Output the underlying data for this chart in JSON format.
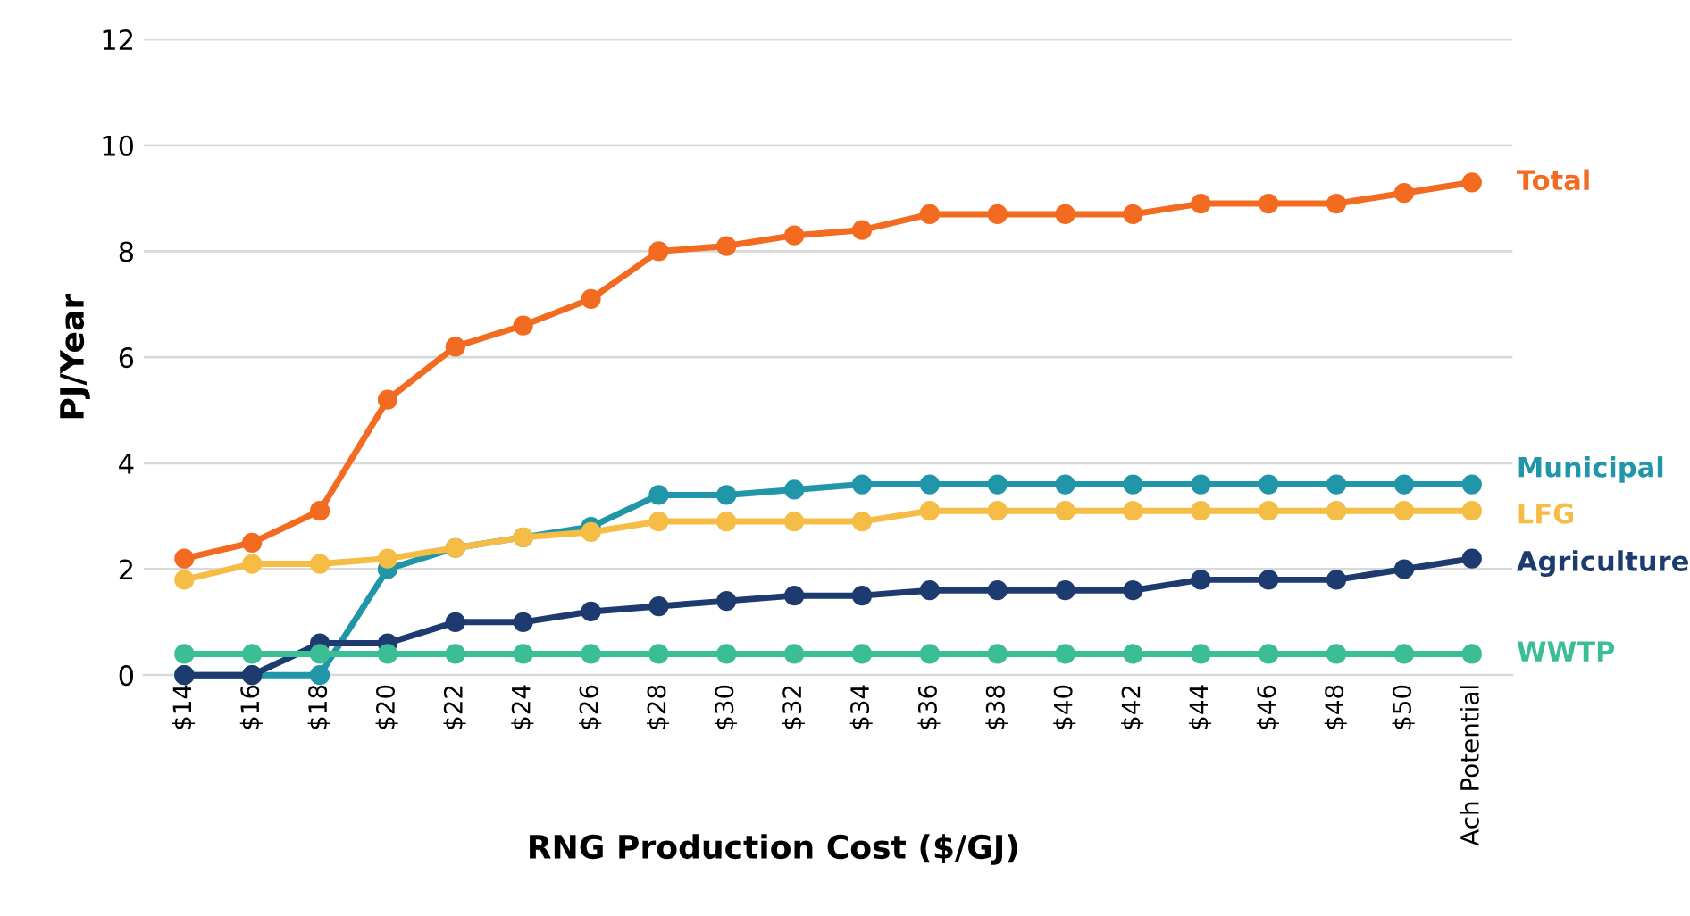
{
  "chart_data": {
    "type": "line",
    "xlabel": "RNG Production Cost ($/GJ)",
    "ylabel": "PJ/Year",
    "categories": [
      "$14",
      "$16",
      "$18",
      "$20",
      "$22",
      "$24",
      "$26",
      "$28",
      "$30",
      "$32",
      "$34",
      "$36",
      "$38",
      "$40",
      "$42",
      "$44",
      "$46",
      "$48",
      "$50",
      "Ach Potential"
    ],
    "series": [
      {
        "name": "Total",
        "color": "#f26b21",
        "values": [
          2.2,
          2.5,
          3.1,
          5.2,
          6.2,
          6.6,
          7.1,
          8.0,
          8.1,
          8.3,
          8.4,
          8.7,
          8.7,
          8.7,
          8.7,
          8.9,
          8.9,
          8.9,
          9.1,
          9.3
        ]
      },
      {
        "name": "Municipal",
        "color": "#2196a8",
        "values": [
          0,
          0,
          0,
          2.0,
          2.4,
          2.6,
          2.8,
          3.4,
          3.4,
          3.5,
          3.6,
          3.6,
          3.6,
          3.6,
          3.6,
          3.6,
          3.6,
          3.6,
          3.6,
          3.6
        ]
      },
      {
        "name": "LFG",
        "color": "#f5bd45",
        "values": [
          1.8,
          2.1,
          2.1,
          2.2,
          2.4,
          2.6,
          2.7,
          2.9,
          2.9,
          2.9,
          2.9,
          3.1,
          3.1,
          3.1,
          3.1,
          3.1,
          3.1,
          3.1,
          3.1,
          3.1
        ]
      },
      {
        "name": "Agriculture",
        "color": "#1d3b6e",
        "values": [
          0,
          0,
          0.6,
          0.6,
          1.0,
          1.0,
          1.2,
          1.3,
          1.4,
          1.5,
          1.5,
          1.6,
          1.6,
          1.6,
          1.6,
          1.8,
          1.8,
          1.8,
          2.0,
          2.2
        ]
      },
      {
        "name": "WWTP",
        "color": "#3bbd96",
        "values": [
          0.4,
          0.4,
          0.4,
          0.4,
          0.4,
          0.4,
          0.4,
          0.4,
          0.4,
          0.4,
          0.4,
          0.4,
          0.4,
          0.4,
          0.4,
          0.4,
          0.4,
          0.4,
          0.4,
          0.4
        ]
      }
    ],
    "ylim": [
      0,
      12
    ],
    "yticks": [
      0,
      2,
      4,
      6,
      8,
      10,
      12
    ],
    "grid": "y",
    "legend": false,
    "marker": "circle",
    "line_style": "solid"
  }
}
